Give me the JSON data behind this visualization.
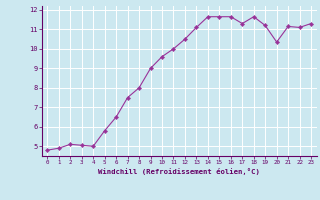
{
  "x": [
    0,
    1,
    2,
    3,
    4,
    5,
    6,
    7,
    8,
    9,
    10,
    11,
    12,
    13,
    14,
    15,
    16,
    17,
    18,
    19,
    20,
    21,
    22,
    23
  ],
  "y": [
    4.8,
    4.9,
    5.1,
    5.05,
    5.0,
    5.8,
    6.5,
    7.5,
    8.0,
    9.0,
    9.6,
    10.0,
    10.5,
    11.1,
    11.65,
    11.65,
    11.65,
    11.3,
    11.65,
    11.2,
    10.35,
    11.15,
    11.1,
    11.3
  ],
  "line_color": "#993399",
  "marker": "D",
  "marker_size": 2.2,
  "bg_color": "#cce8f0",
  "grid_color": "#bbddee",
  "xlabel": "Windchill (Refroidissement éolien,°C)",
  "xlabel_color": "#660066",
  "tick_color": "#660066",
  "ylim": [
    4.5,
    12.2
  ],
  "xlim": [
    -0.5,
    23.5
  ],
  "yticks": [
    5,
    6,
    7,
    8,
    9,
    10,
    11,
    12
  ],
  "xticks": [
    0,
    1,
    2,
    3,
    4,
    5,
    6,
    7,
    8,
    9,
    10,
    11,
    12,
    13,
    14,
    15,
    16,
    17,
    18,
    19,
    20,
    21,
    22,
    23
  ]
}
